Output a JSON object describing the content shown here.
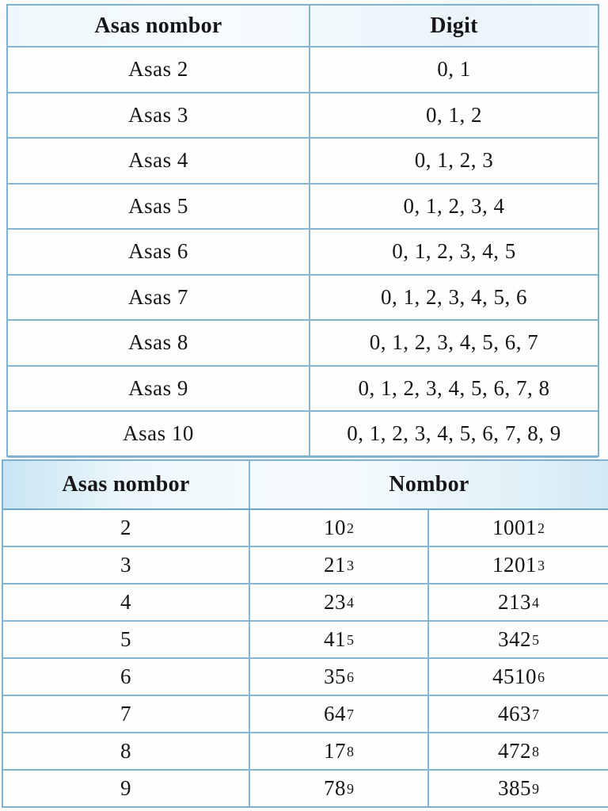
{
  "document": {
    "type": "scanned-textbook-page",
    "language": "Malay"
  },
  "colors": {
    "border_blue": "#7fb2d2",
    "header_tint": "#d7ecf7",
    "paper": "#fdfdfb",
    "text": "#161618"
  },
  "table1": {
    "headers": {
      "col1": "Asas nombor",
      "col2": "Digit"
    },
    "rows": [
      {
        "base_label": "Asas 2",
        "digits": "0, 1"
      },
      {
        "base_label": "Asas 3",
        "digits": "0, 1, 2"
      },
      {
        "base_label": "Asas 4",
        "digits": "0, 1, 2, 3"
      },
      {
        "base_label": "Asas 5",
        "digits": "0, 1, 2, 3, 4"
      },
      {
        "base_label": "Asas 6",
        "digits": "0, 1, 2, 3, 4, 5"
      },
      {
        "base_label": "Asas 7",
        "digits": "0, 1, 2, 3, 4, 5, 6"
      },
      {
        "base_label": "Asas 8",
        "digits": "0, 1, 2, 3, 4, 5, 6, 7"
      },
      {
        "base_label": "Asas 9",
        "digits": "0, 1, 2, 3, 4, 5, 6, 7, 8"
      },
      {
        "base_label": "Asas 10",
        "digits": "0, 1, 2, 3, 4, 5, 6, 7, 8, 9"
      }
    ]
  },
  "table2": {
    "headers": {
      "col1": "Asas nombor",
      "col2": "Nombor"
    },
    "rows": [
      {
        "base": "2",
        "number1": {
          "value": "10",
          "sub": "2"
        },
        "number2": {
          "value": "1001",
          "sub": "2"
        }
      },
      {
        "base": "3",
        "number1": {
          "value": "21",
          "sub": "3"
        },
        "number2": {
          "value": "1201",
          "sub": "3"
        }
      },
      {
        "base": "4",
        "number1": {
          "value": "23",
          "sub": "4"
        },
        "number2": {
          "value": "213",
          "sub": "4"
        }
      },
      {
        "base": "5",
        "number1": {
          "value": "41",
          "sub": "5"
        },
        "number2": {
          "value": "342",
          "sub": "5"
        }
      },
      {
        "base": "6",
        "number1": {
          "value": "35",
          "sub": "6"
        },
        "number2": {
          "value": "4510",
          "sub": "6"
        }
      },
      {
        "base": "7",
        "number1": {
          "value": "64",
          "sub": "7"
        },
        "number2": {
          "value": "463",
          "sub": "7"
        }
      },
      {
        "base": "8",
        "number1": {
          "value": "17",
          "sub": "8"
        },
        "number2": {
          "value": "472",
          "sub": "8"
        }
      },
      {
        "base": "9",
        "number1": {
          "value": "78",
          "sub": "9"
        },
        "number2": {
          "value": "385",
          "sub": "9"
        }
      }
    ]
  }
}
